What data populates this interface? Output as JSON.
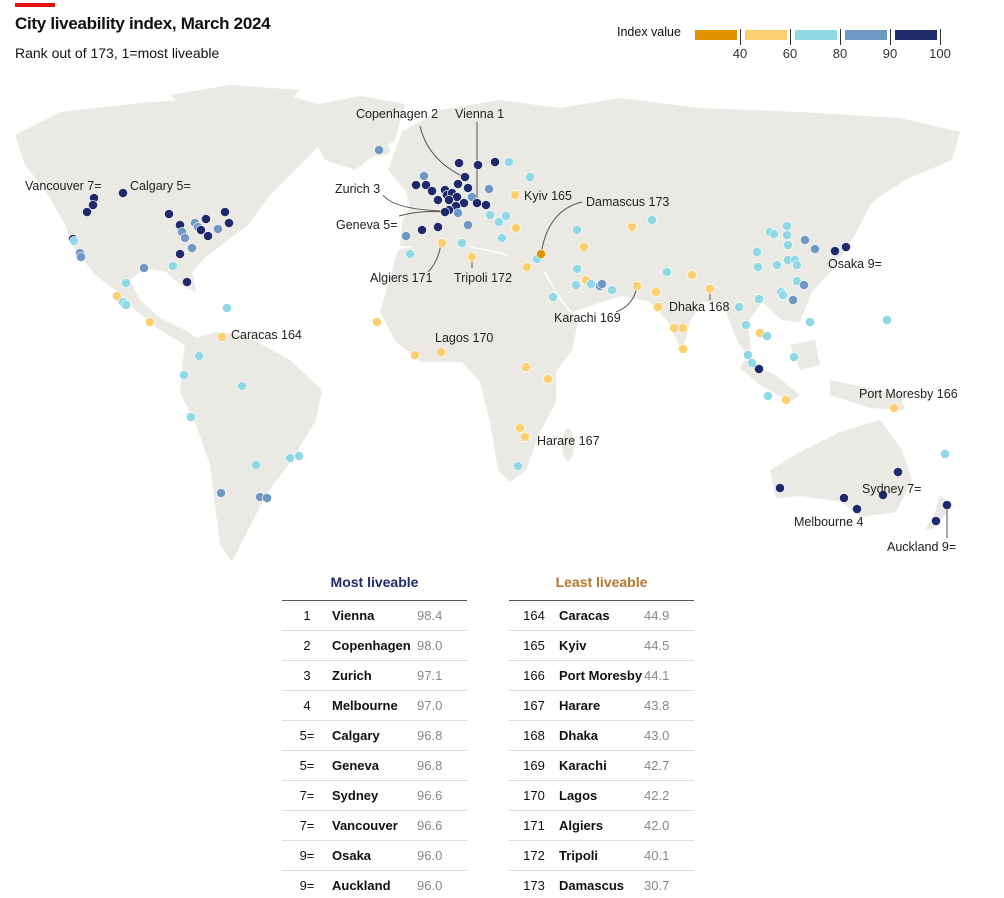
{
  "header": {
    "title": "City liveability index, March 2024",
    "subtitle": "Rank out of 173, 1=most liveable"
  },
  "legend": {
    "label": "Index value",
    "ticks": [
      "40",
      "60",
      "80",
      "90",
      "100"
    ],
    "colors": [
      "#df9300",
      "#fdd06f",
      "#8fd8e5",
      "#6f98c3",
      "#1f2a6d"
    ]
  },
  "map_labels": [
    {
      "text": "Vancouver 7="
    },
    {
      "text": "Calgary 5="
    },
    {
      "text": "Copenhagen 2"
    },
    {
      "text": "Vienna 1"
    },
    {
      "text": "Zurich 3"
    },
    {
      "text": "Geneva 5="
    },
    {
      "text": "Kyiv 165"
    },
    {
      "text": "Damascus 173"
    },
    {
      "text": "Algiers 171"
    },
    {
      "text": "Tripoli 172"
    },
    {
      "text": "Caracas 164"
    },
    {
      "text": "Lagos 170"
    },
    {
      "text": "Karachi 169"
    },
    {
      "text": "Dhaka 168"
    },
    {
      "text": "Osaka 9="
    },
    {
      "text": "Harare 167"
    },
    {
      "text": "Port Moresby 166"
    },
    {
      "text": "Sydney 7="
    },
    {
      "text": "Melbourne 4"
    },
    {
      "text": "Auckland 9="
    }
  ],
  "most": {
    "title": "Most liveable",
    "rows": [
      {
        "rank": "1",
        "city": "Vienna",
        "value": "98.4"
      },
      {
        "rank": "2",
        "city": "Copenhagen",
        "value": "98.0"
      },
      {
        "rank": "3",
        "city": "Zurich",
        "value": "97.1"
      },
      {
        "rank": "4",
        "city": "Melbourne",
        "value": "97.0"
      },
      {
        "rank": "5=",
        "city": "Calgary",
        "value": "96.8"
      },
      {
        "rank": "5=",
        "city": "Geneva",
        "value": "96.8"
      },
      {
        "rank": "7=",
        "city": "Sydney",
        "value": "96.6"
      },
      {
        "rank": "7=",
        "city": "Vancouver",
        "value": "96.6"
      },
      {
        "rank": "9=",
        "city": "Osaka",
        "value": "96.0"
      },
      {
        "rank": "9=",
        "city": "Auckland",
        "value": "96.0"
      }
    ]
  },
  "least": {
    "title": "Least liveable",
    "rows": [
      {
        "rank": "164",
        "city": "Caracas",
        "value": "44.9"
      },
      {
        "rank": "165",
        "city": "Kyiv",
        "value": "44.5"
      },
      {
        "rank": "166",
        "city": "Port Moresby",
        "value": "44.1"
      },
      {
        "rank": "167",
        "city": "Harare",
        "value": "43.8"
      },
      {
        "rank": "168",
        "city": "Dhaka",
        "value": "43.0"
      },
      {
        "rank": "169",
        "city": "Karachi",
        "value": "42.7"
      },
      {
        "rank": "170",
        "city": "Lagos",
        "value": "42.2"
      },
      {
        "rank": "171",
        "city": "Algiers",
        "value": "42.0"
      },
      {
        "rank": "172",
        "city": "Tripoli",
        "value": "40.1"
      },
      {
        "rank": "173",
        "city": "Damascus",
        "value": "30.7"
      }
    ]
  },
  "colors": {
    "most_title": "#1f2a6d",
    "least_title": "#b4772a",
    "land": "#ebe9e3"
  }
}
